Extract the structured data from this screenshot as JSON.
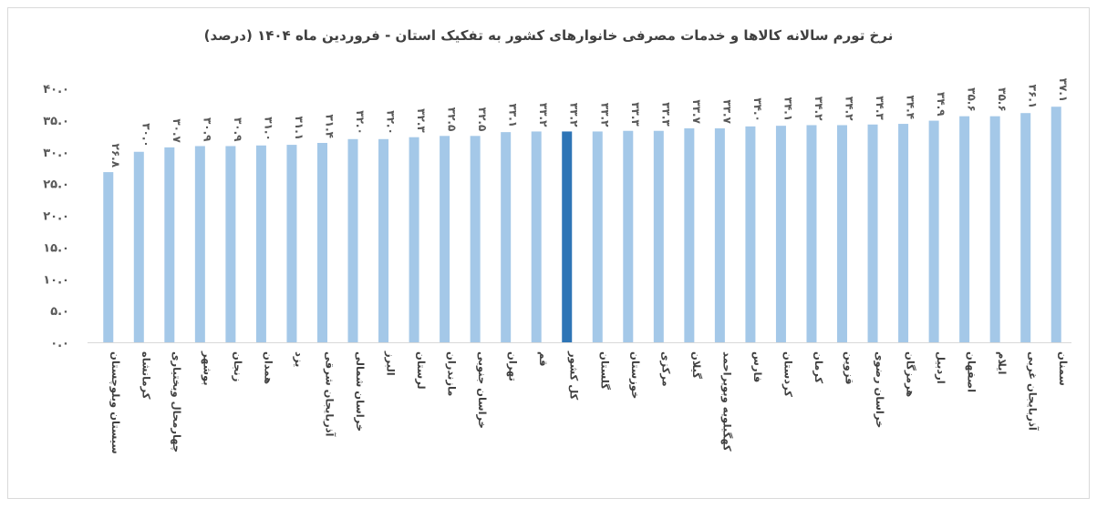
{
  "chart_data": {
    "type": "bar",
    "title": "نرخ تورم سالانه کالاها و خدمات مصرفی خانوارهای کشور به تفکیک استان - فروردین ماه ۱۴۰۴ (درصد)",
    "categories": [
      "سیستان وبلوچستان",
      "کرمانشاه",
      "چهارمحال وبختیاری",
      "بوشهر",
      "زنجان",
      "همدان",
      "یزد",
      "آذربایجان شرقی",
      "خراسان شمالی",
      "البرز",
      "لرستان",
      "مازندران",
      "خراسان جنوبی",
      "تهران",
      "قم",
      "کل کشور",
      "گلستان",
      "خوزستان",
      "مرکزی",
      "گیلان",
      "کهگیلویه وبویراحمد",
      "فارس",
      "کردستان",
      "کرمان",
      "قزوین",
      "خراسان رضوی",
      "هرمزگان",
      "اردبیل",
      "اصفهان",
      "ایلام",
      "آذربایجان غربی",
      "سمنان"
    ],
    "values": [
      26.8,
      30.0,
      30.7,
      30.9,
      30.9,
      31.0,
      31.1,
      31.4,
      32.0,
      32.0,
      32.3,
      32.5,
      32.5,
      33.1,
      33.2,
      33.2,
      33.2,
      33.3,
      33.3,
      33.7,
      33.7,
      34.0,
      34.1,
      34.2,
      34.2,
      34.3,
      34.4,
      34.9,
      35.6,
      35.6,
      36.1,
      37.1
    ],
    "data_labels": [
      "۲۶.۸",
      "۳۰.۰",
      "۳۰.۷",
      "۳۰.۹",
      "۳۰.۹",
      "۳۱.۰",
      "۳۱.۱",
      "۳۱.۴",
      "۳۲.۰",
      "۳۲.۰",
      "۳۲.۳",
      "۳۲.۵",
      "۳۲.۵",
      "۳۳.۱",
      "۳۳.۲",
      "۳۳.۲",
      "۳۳.۲",
      "۳۳.۳",
      "۳۳.۳",
      "۳۳.۷",
      "۳۳.۷",
      "۳۴.۰",
      "۳۴.۱",
      "۳۴.۲",
      "۳۴.۲",
      "۳۴.۳",
      "۳۴.۴",
      "۳۴.۹",
      "۳۵.۶",
      "۳۵.۶",
      "۳۶.۱",
      "۳۷.۱"
    ],
    "highlight_category": "کل کشور",
    "ylim": [
      0,
      40
    ],
    "yticks": [
      "۰.۰",
      "۵.۰",
      "۱۰.۰",
      "۱۵.۰",
      "۲۰.۰",
      "۲۵.۰",
      "۳۰.۰",
      "۳۵.۰",
      "۴۰.۰"
    ],
    "grid": false,
    "colors": {
      "bar": "#a4c8e8",
      "highlight": "#2e75b6",
      "axis": "#d9d9d9",
      "text": "#595959"
    }
  }
}
